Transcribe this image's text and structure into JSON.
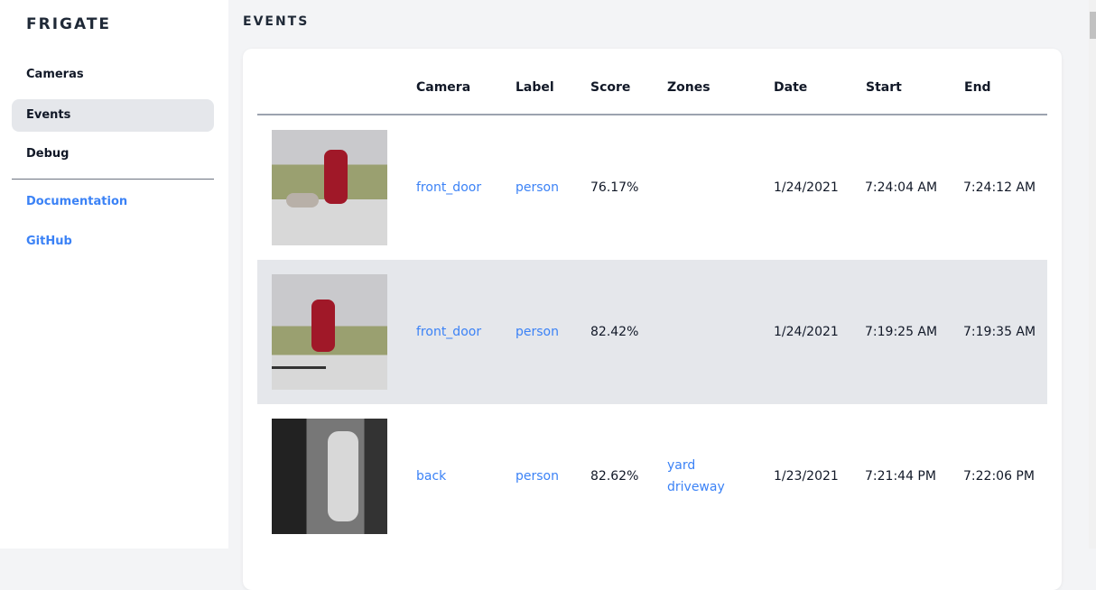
{
  "sidebar": {
    "brand": "FRIGATE",
    "items": [
      {
        "label": "Cameras"
      },
      {
        "label": "Events",
        "active": true
      },
      {
        "label": "Debug"
      }
    ],
    "links": [
      {
        "label": "Documentation"
      },
      {
        "label": "GitHub"
      }
    ]
  },
  "page": {
    "title": "EVENTS"
  },
  "table": {
    "headers": [
      "Camera",
      "Label",
      "Score",
      "Zones",
      "Date",
      "Start",
      "End"
    ],
    "rows": [
      {
        "camera": "front_door",
        "label": "person",
        "score": "76.17%",
        "zones": [
          "",
          ""
        ],
        "date": "1/24/2021",
        "start": "7:24:04 AM",
        "end": "7:24:12 AM"
      },
      {
        "camera": "front_door",
        "label": "person",
        "score": "82.42%",
        "zones": [
          "",
          ""
        ],
        "date": "1/24/2021",
        "start": "7:19:25 AM",
        "end": "7:19:35 AM"
      },
      {
        "camera": "back",
        "label": "person",
        "score": "82.62%",
        "zones": [
          "yard",
          "driveway"
        ],
        "date": "1/23/2021",
        "start": "7:21:44 PM",
        "end": "7:22:06 PM"
      }
    ]
  },
  "colors": {
    "link": "#3b82f6",
    "active_bg": "#e5e7eb",
    "page_bg": "#f3f4f6"
  }
}
